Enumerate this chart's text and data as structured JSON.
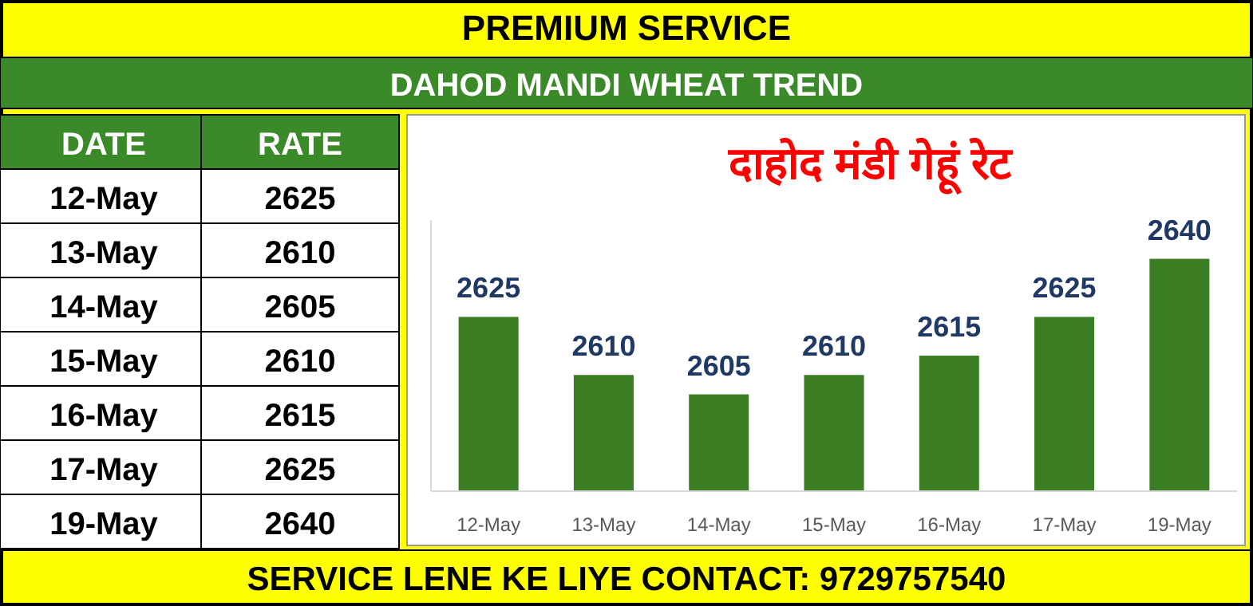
{
  "chart_data": [
    {
      "type": "other",
      "annotations": [
        "DATE",
        "RATE"
      ],
      "categories": [
        "12-May",
        "13-May",
        "14-May",
        "15-May",
        "16-May",
        "17-May",
        "19-May"
      ],
      "values": [
        2625,
        2610,
        2605,
        2610,
        2615,
        2625,
        2640
      ],
      "data_labels": true
    },
    {
      "type": "bar",
      "title": "दाहोद मंडी गेहूं रेट",
      "categories": [
        "12-May",
        "13-May",
        "14-May",
        "15-May",
        "16-May",
        "17-May",
        "19-May"
      ],
      "values": [
        2625,
        2610,
        2605,
        2610,
        2615,
        2625,
        2640
      ],
      "color": "#3a7d22",
      "ylim": [
        2580,
        2650
      ],
      "tick_labels": "x",
      "data_labels": true,
      "annotations": [
        "PREMIUM SERVICE",
        "DAHOD MANDI WHEAT TREND",
        "SERVICE LENE KE LIYE CONTACT: 9729757540"
      ]
    }
  ]
}
